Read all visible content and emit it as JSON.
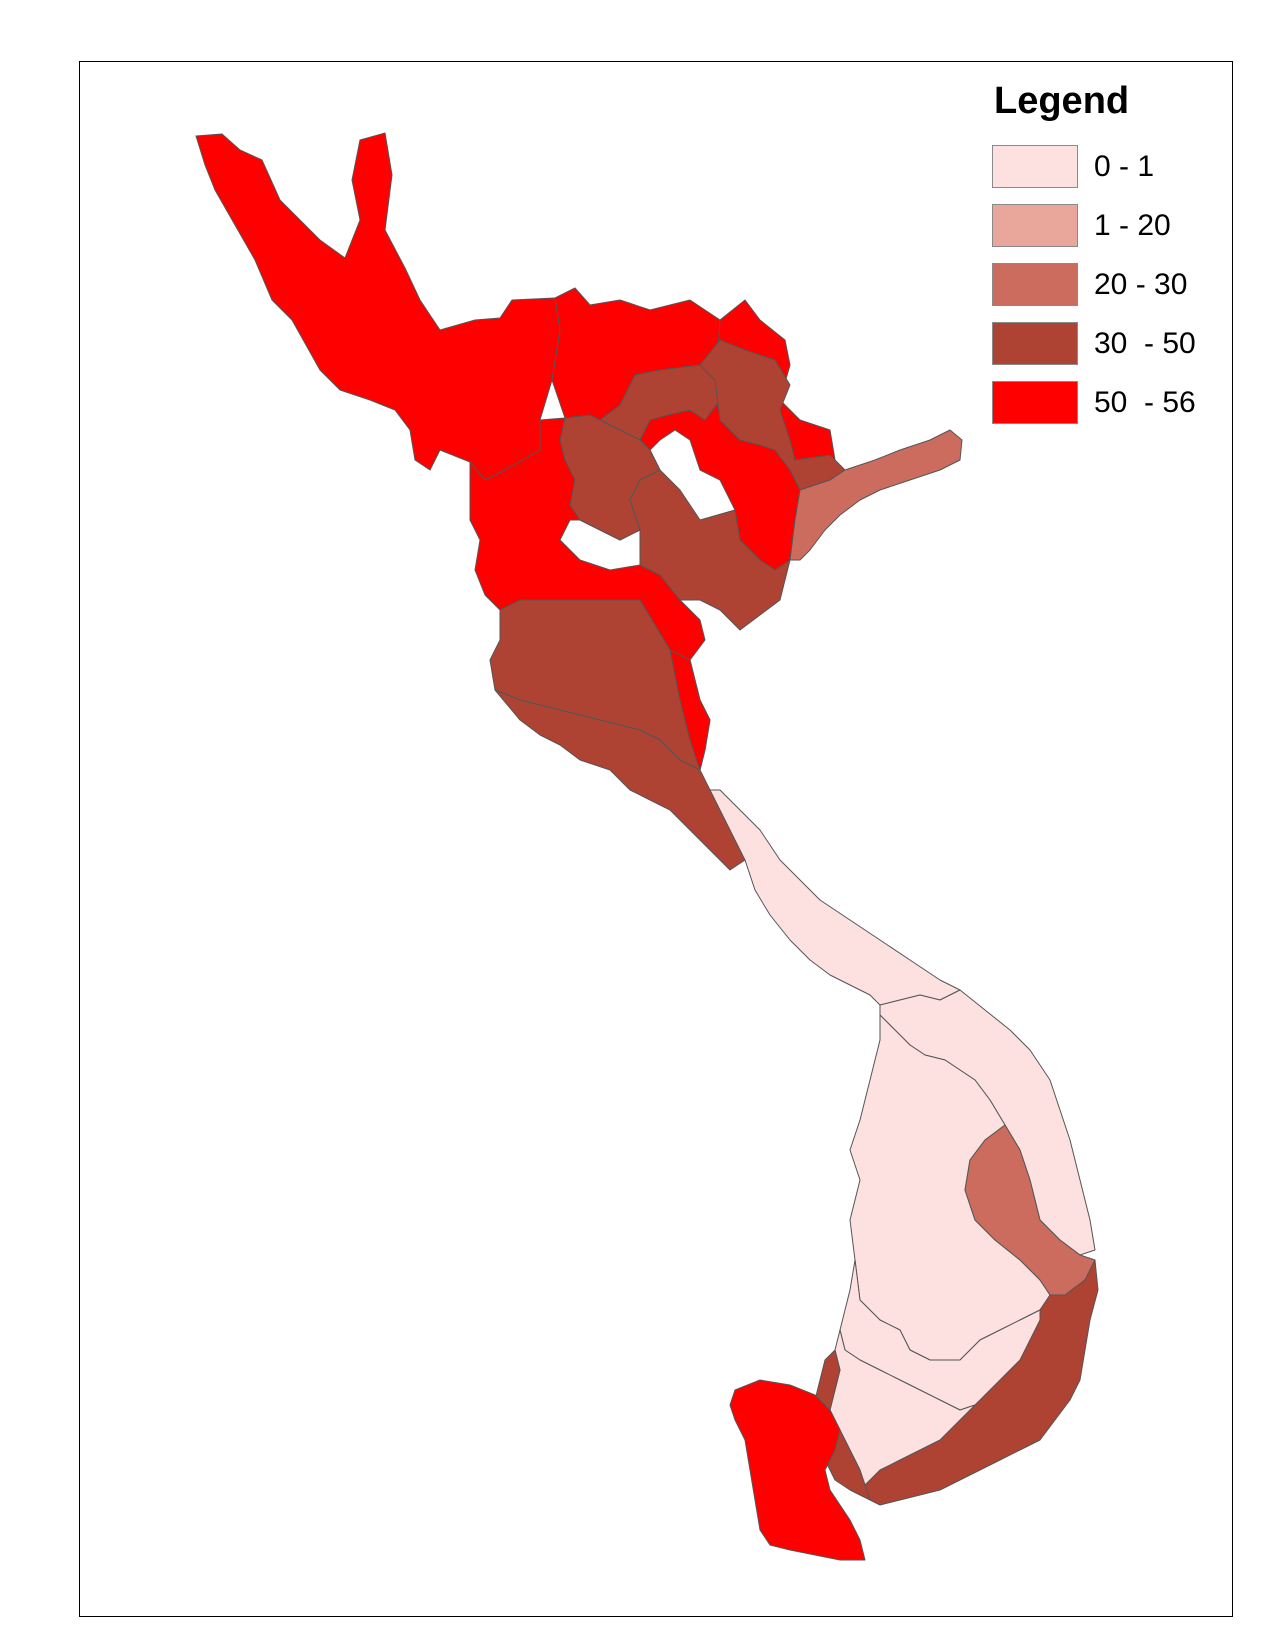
{
  "legend": {
    "title": "Legend",
    "classes": [
      {
        "label": "0 - 1",
        "color": "#fde0e0"
      },
      {
        "label": "1 - 20",
        "color": "#e9a79b"
      },
      {
        "label": "20 - 30",
        "color": "#cc6c5e"
      },
      {
        "label": "30  - 50",
        "color": "#af4333"
      },
      {
        "label": "50  - 56",
        "color": "#ff0000"
      }
    ]
  },
  "map": {
    "border_color": "#555555",
    "regions": [
      {
        "id": "northwest-large",
        "class": 4
      },
      {
        "id": "north-central-1",
        "class": 4
      },
      {
        "id": "north-central-2",
        "class": 4
      },
      {
        "id": "north-central-3",
        "class": 4
      },
      {
        "id": "northeast-1",
        "class": 3
      },
      {
        "id": "northeast-2",
        "class": 3
      },
      {
        "id": "northeast-coast",
        "class": 2
      },
      {
        "id": "red-river-delta-1",
        "class": 3
      },
      {
        "id": "red-river-delta-2",
        "class": 3
      },
      {
        "id": "thanh-hoa",
        "class": 3
      },
      {
        "id": "nghe-an",
        "class": 3
      },
      {
        "id": "ha-tinh",
        "class": 4
      },
      {
        "id": "central-coast-north",
        "class": 0
      },
      {
        "id": "central-coast-mid",
        "class": 0
      },
      {
        "id": "central-highlands-north",
        "class": 0
      },
      {
        "id": "central-highlands-south",
        "class": 2
      },
      {
        "id": "south-central-coast",
        "class": 3
      },
      {
        "id": "southeast-1",
        "class": 0
      },
      {
        "id": "southeast-2",
        "class": 0
      },
      {
        "id": "southeast-coast",
        "class": 3
      },
      {
        "id": "mekong-delta",
        "class": 4
      }
    ]
  }
}
